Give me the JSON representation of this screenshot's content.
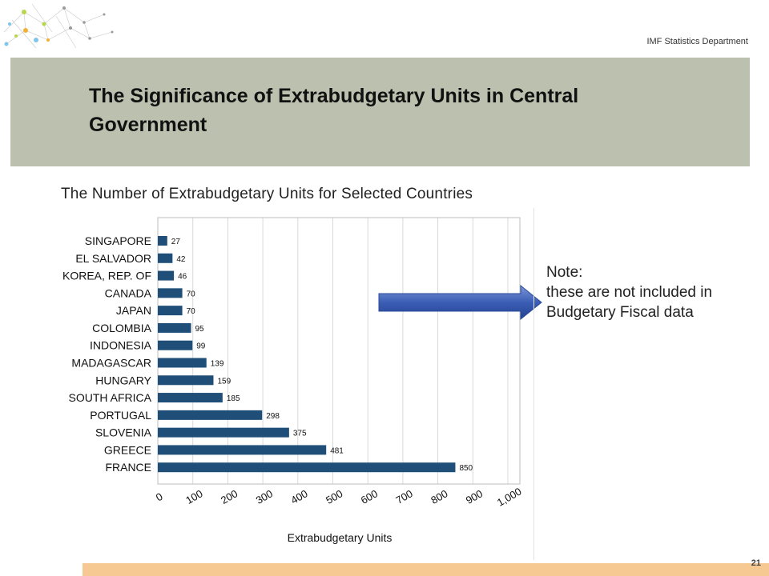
{
  "header": {
    "department": "IMF Statistics Department",
    "title": "The Significance of Extrabudgetary Units in Central Government"
  },
  "chart_data": {
    "type": "bar",
    "orientation": "horizontal",
    "title": "The Number of Extrabudgetary Units for Selected  Countries",
    "xlabel": "Extrabudgetary Units",
    "ylabel": "",
    "categories": [
      "SINGAPORE",
      "EL SALVADOR",
      "KOREA, REP. OF",
      "CANADA",
      "JAPAN",
      "COLOMBIA",
      "INDONESIA",
      "MADAGASCAR",
      "HUNGARY",
      "SOUTH AFRICA",
      "PORTUGAL",
      "SLOVENIA",
      "GREECE",
      "FRANCE"
    ],
    "values": [
      27,
      42,
      46,
      70,
      70,
      95,
      99,
      139,
      159,
      185,
      298,
      375,
      481,
      850
    ],
    "data_labels": [
      "27",
      "42",
      "46",
      "70",
      "70",
      "95",
      "99",
      "139",
      "159",
      "185",
      "298",
      "375",
      "481",
      "850"
    ],
    "xlim": [
      0,
      1000
    ],
    "xticks": [
      "0",
      "100",
      "200",
      "300",
      "400",
      "500",
      "600",
      "700",
      "800",
      "900",
      "1,000"
    ],
    "grid": true,
    "bar_color": "#1f4e79"
  },
  "note": {
    "heading": "Note:",
    "text": "these are not included in Budgetary Fiscal data"
  },
  "arrow_color": "#3b5eb5",
  "banner_color": "#bcc0ae",
  "footer": {
    "page_number": "21",
    "bar_color": "#f6c992"
  }
}
